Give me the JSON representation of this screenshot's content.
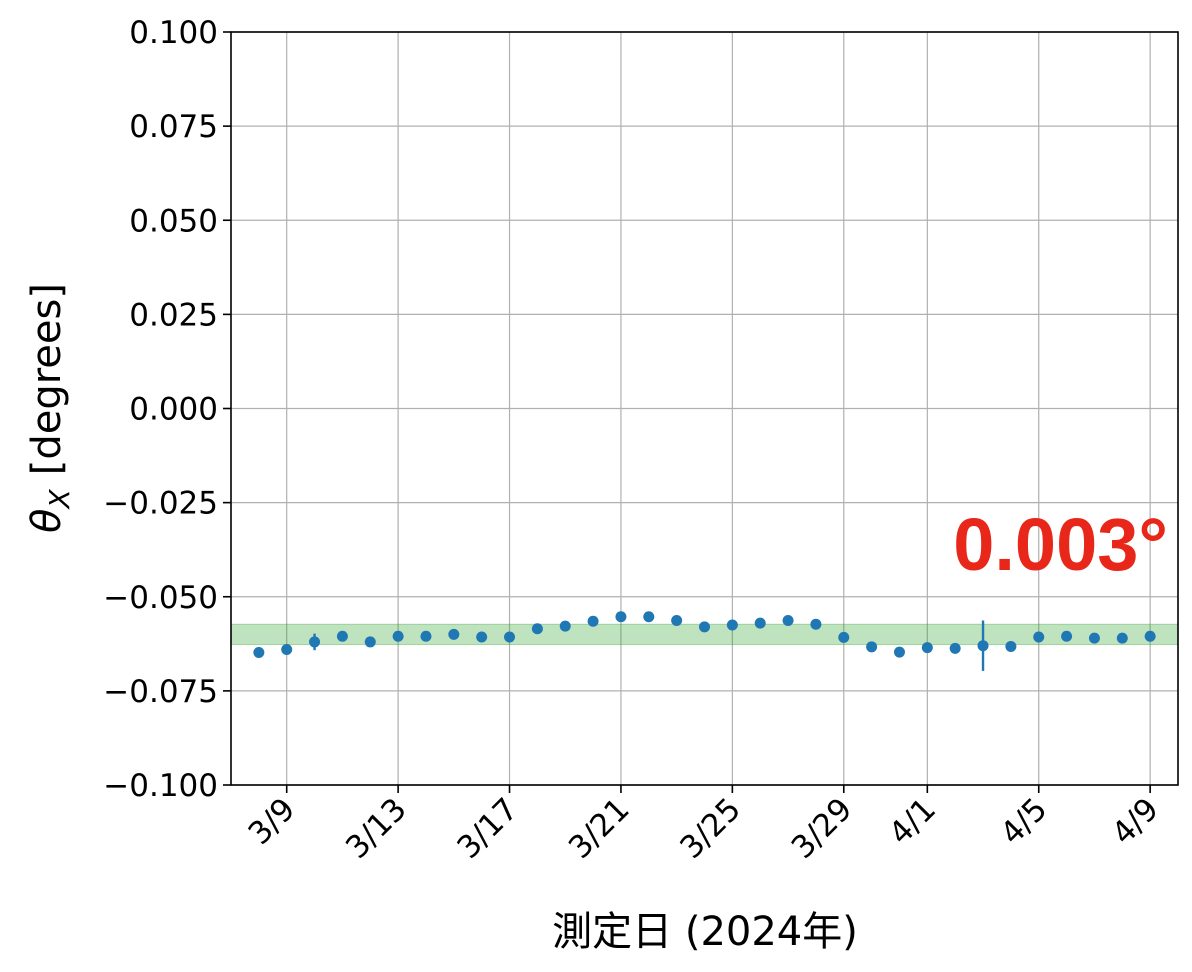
{
  "chart_data": {
    "type": "scatter",
    "xlabel": "測定日 (2024年)",
    "ylabel": "θ",
    "ylabel_subscript": "X",
    "ylabel_unit": "[degrees]",
    "ylim": [
      -0.1,
      0.1
    ],
    "xlim": [
      "2024-03-07",
      "2024-04-10"
    ],
    "y_ticks": [
      "0.100",
      "0.075",
      "0.050",
      "0.025",
      "0.000",
      "−0.025",
      "−0.050",
      "−0.075",
      "−0.100"
    ],
    "y_tick_values": [
      0.1,
      0.075,
      0.05,
      0.025,
      0.0,
      -0.025,
      -0.05,
      -0.075,
      -0.1
    ],
    "x_ticks": [
      {
        "date": "2024-03-09",
        "label": "3/9"
      },
      {
        "date": "2024-03-13",
        "label": "3/13"
      },
      {
        "date": "2024-03-17",
        "label": "3/17"
      },
      {
        "date": "2024-03-21",
        "label": "3/21"
      },
      {
        "date": "2024-03-25",
        "label": "3/25"
      },
      {
        "date": "2024-03-29",
        "label": "3/29"
      },
      {
        "date": "2024-04-01",
        "label": "4/1"
      },
      {
        "date": "2024-04-05",
        "label": "4/5"
      },
      {
        "date": "2024-04-09",
        "label": "4/9"
      }
    ],
    "grid": true,
    "band": {
      "y_min": -0.0627,
      "y_max": -0.0573,
      "color": "#2ca02c"
    },
    "series": [
      {
        "color": "#1f77b4",
        "points": [
          {
            "x": "2024-03-08",
            "y": -0.0648,
            "err": 0.0
          },
          {
            "x": "2024-03-09",
            "y": -0.064,
            "err": 0.0
          },
          {
            "x": "2024-03-10",
            "y": -0.062,
            "err": 0.0022
          },
          {
            "x": "2024-03-11",
            "y": -0.0605,
            "err": 0.0
          },
          {
            "x": "2024-03-12",
            "y": -0.062,
            "err": 0.0
          },
          {
            "x": "2024-03-13",
            "y": -0.0605,
            "err": 0.0
          },
          {
            "x": "2024-03-14",
            "y": -0.0605,
            "err": 0.0
          },
          {
            "x": "2024-03-15",
            "y": -0.06,
            "err": 0.0
          },
          {
            "x": "2024-03-16",
            "y": -0.0607,
            "err": 0.0
          },
          {
            "x": "2024-03-17",
            "y": -0.0607,
            "err": 0.0
          },
          {
            "x": "2024-03-18",
            "y": -0.0585,
            "err": 0.0
          },
          {
            "x": "2024-03-19",
            "y": -0.0578,
            "err": 0.0
          },
          {
            "x": "2024-03-20",
            "y": -0.0565,
            "err": 0.0
          },
          {
            "x": "2024-03-21",
            "y": -0.0553,
            "err": 0.0
          },
          {
            "x": "2024-03-22",
            "y": -0.0553,
            "err": 0.0
          },
          {
            "x": "2024-03-23",
            "y": -0.0563,
            "err": 0.0
          },
          {
            "x": "2024-03-24",
            "y": -0.058,
            "err": 0.0
          },
          {
            "x": "2024-03-25",
            "y": -0.0575,
            "err": 0.0
          },
          {
            "x": "2024-03-26",
            "y": -0.057,
            "err": 0.0
          },
          {
            "x": "2024-03-27",
            "y": -0.0563,
            "err": 0.0
          },
          {
            "x": "2024-03-28",
            "y": -0.0573,
            "err": 0.0
          },
          {
            "x": "2024-03-29",
            "y": -0.0608,
            "err": 0.0
          },
          {
            "x": "2024-03-30",
            "y": -0.0633,
            "err": 0.0
          },
          {
            "x": "2024-03-31",
            "y": -0.0647,
            "err": 0.0
          },
          {
            "x": "2024-04-01",
            "y": -0.0635,
            "err": 0.0
          },
          {
            "x": "2024-04-02",
            "y": -0.0637,
            "err": 0.0
          },
          {
            "x": "2024-04-03",
            "y": -0.063,
            "err": 0.0067
          },
          {
            "x": "2024-04-04",
            "y": -0.0632,
            "err": 0.0
          },
          {
            "x": "2024-04-05",
            "y": -0.0607,
            "err": 0.0
          },
          {
            "x": "2024-04-06",
            "y": -0.0605,
            "err": 0.0
          },
          {
            "x": "2024-04-07",
            "y": -0.061,
            "err": 0.0
          },
          {
            "x": "2024-04-08",
            "y": -0.061,
            "err": 0.0
          },
          {
            "x": "2024-04-09",
            "y": -0.0605,
            "err": 0.0
          }
        ]
      }
    ],
    "annotations": [
      {
        "text": "0.003°",
        "color": "#e8271a",
        "placement": "upper-right, above the band"
      }
    ]
  }
}
